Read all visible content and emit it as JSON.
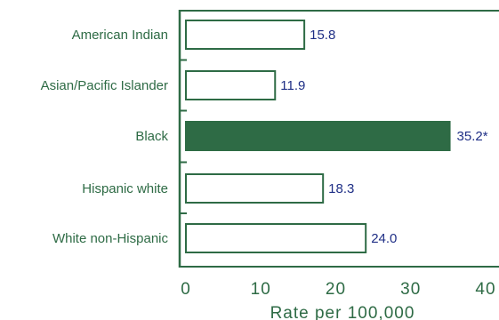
{
  "chart_data": {
    "type": "bar",
    "orientation": "horizontal",
    "categories": [
      "American Indian",
      "Asian/Pacific Islander",
      "Black",
      "Hispanic white",
      "White non-Hispanic"
    ],
    "values": [
      15.8,
      11.9,
      35.2,
      18.3,
      24.0
    ],
    "value_labels": [
      "15.8",
      "11.9",
      "35.2*",
      "18.3",
      "24.0"
    ],
    "highlight": [
      false,
      false,
      true,
      false,
      false
    ],
    "xlabel": "Rate per 100,000",
    "xlim": [
      0,
      40
    ],
    "xticks": [
      "0",
      "10",
      "20",
      "30",
      "40"
    ],
    "grid": false,
    "colors": {
      "axis": "#2e6b45",
      "bar_fill": "#ffffff",
      "bar_highlight": "#2e6b45",
      "value_text": "#1f2f86",
      "label_text": "#2e6b45"
    }
  }
}
